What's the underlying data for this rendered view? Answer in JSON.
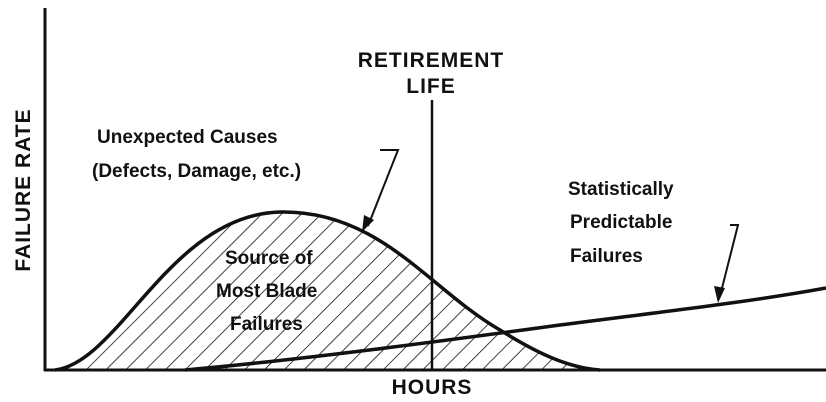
{
  "axes": {
    "y_label": "FAILURE RATE",
    "x_label": "HOURS"
  },
  "retirement_life": {
    "lines": [
      "RETIREMENT",
      "LIFE"
    ]
  },
  "unexpected_causes": {
    "lines": [
      "Unexpected Causes",
      "(Defects, Damage, etc.)"
    ]
  },
  "source": {
    "lines": [
      "Source of",
      "Most Blade",
      "Failures"
    ]
  },
  "predictable": {
    "lines": [
      "Statistically",
      "Predictable",
      "Failures"
    ]
  }
}
